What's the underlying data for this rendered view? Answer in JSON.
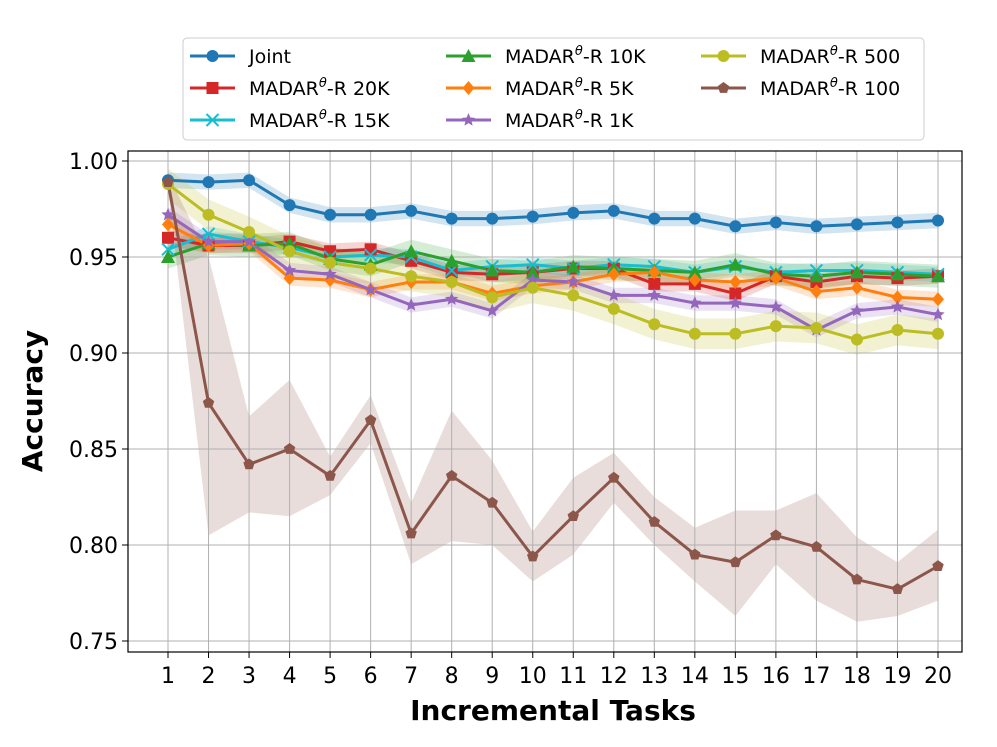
{
  "chart_data": {
    "type": "line",
    "title": "",
    "xlabel": "Incremental Tasks",
    "ylabel": "Accuracy",
    "x": [
      1,
      2,
      3,
      4,
      5,
      6,
      7,
      8,
      9,
      10,
      11,
      12,
      13,
      14,
      15,
      16,
      17,
      18,
      19,
      20
    ],
    "xticks": [
      "1",
      "2",
      "3",
      "4",
      "5",
      "6",
      "7",
      "8",
      "9",
      "10",
      "11",
      "12",
      "13",
      "14",
      "15",
      "16",
      "17",
      "18",
      "19",
      "20"
    ],
    "ylim": [
      0.75,
      1.0
    ],
    "yticks": [
      "0.75",
      "0.80",
      "0.85",
      "0.90",
      "0.95",
      "1.00"
    ],
    "grid": true,
    "legend_placement": "top-center",
    "series": [
      {
        "name": "Joint",
        "legend": [
          "Joint",
          ""
        ],
        "color": "#1f77b4",
        "marker": "circle",
        "values": [
          0.99,
          0.989,
          0.99,
          0.977,
          0.972,
          0.972,
          0.974,
          0.97,
          0.97,
          0.971,
          0.973,
          0.974,
          0.97,
          0.97,
          0.966,
          0.968,
          0.966,
          0.967,
          0.968,
          0.969
        ],
        "band": 0.004
      },
      {
        "name": "MADARθ-R 20K",
        "legend": [
          "MADAR",
          "-R 20K"
        ],
        "color": "#d62728",
        "marker": "square",
        "values": [
          0.96,
          0.956,
          0.956,
          0.958,
          0.953,
          0.954,
          0.948,
          0.942,
          0.941,
          0.942,
          0.944,
          0.944,
          0.936,
          0.936,
          0.931,
          0.94,
          0.937,
          0.94,
          0.939,
          0.94
        ],
        "band": 0.004
      },
      {
        "name": "MADARθ-R 15K",
        "legend": [
          "MADAR",
          "-R 15K"
        ],
        "color": "#17becf",
        "marker": "x",
        "values": [
          0.954,
          0.962,
          0.958,
          0.955,
          0.95,
          0.951,
          0.95,
          0.943,
          0.945,
          0.946,
          0.944,
          0.946,
          0.945,
          0.942,
          0.945,
          0.942,
          0.943,
          0.943,
          0.942,
          0.941
        ],
        "band": 0.004
      },
      {
        "name": "MADARθ-R 10K",
        "legend": [
          "MADAR",
          "-R 10K"
        ],
        "color": "#2ca02c",
        "marker": "triangle",
        "values": [
          0.95,
          0.957,
          0.956,
          0.957,
          0.949,
          0.946,
          0.953,
          0.948,
          0.943,
          0.942,
          0.945,
          0.944,
          0.943,
          0.942,
          0.946,
          0.941,
          0.94,
          0.942,
          0.941,
          0.94
        ],
        "band": 0.006
      },
      {
        "name": "MADARθ-R 5K",
        "legend": [
          "MADAR",
          "-R 5K"
        ],
        "color": "#ff7f0e",
        "marker": "diamond",
        "values": [
          0.967,
          0.956,
          0.957,
          0.939,
          0.938,
          0.933,
          0.937,
          0.937,
          0.931,
          0.935,
          0.937,
          0.941,
          0.942,
          0.938,
          0.937,
          0.939,
          0.932,
          0.934,
          0.929,
          0.928
        ],
        "band": 0.004
      },
      {
        "name": "MADARθ-R 1K",
        "legend": [
          "MADAR",
          "-R 1K"
        ],
        "color": "#9467bd",
        "marker": "star",
        "values": [
          0.972,
          0.958,
          0.958,
          0.943,
          0.941,
          0.933,
          0.925,
          0.928,
          0.922,
          0.938,
          0.937,
          0.93,
          0.93,
          0.926,
          0.926,
          0.924,
          0.912,
          0.922,
          0.924,
          0.92
        ],
        "band": 0.004
      },
      {
        "name": "MADARθ-R 500",
        "legend": [
          "MADAR",
          "-R 500"
        ],
        "color": "#bcbd22",
        "marker": "circle",
        "values": [
          0.988,
          0.972,
          0.963,
          0.953,
          0.947,
          0.944,
          0.94,
          0.937,
          0.929,
          0.934,
          0.93,
          0.923,
          0.915,
          0.91,
          0.91,
          0.914,
          0.913,
          0.907,
          0.912,
          0.91
        ],
        "band": 0.008
      },
      {
        "name": "MADARθ-R 100",
        "legend": [
          "MADAR",
          "-R 100"
        ],
        "color": "#8c564b",
        "marker": "pentagon",
        "values": [
          0.989,
          0.874,
          0.842,
          0.85,
          0.836,
          0.865,
          0.806,
          0.836,
          0.822,
          0.794,
          0.815,
          0.835,
          0.812,
          0.795,
          0.791,
          0.805,
          0.799,
          0.782,
          0.777,
          0.789
        ],
        "band_low": [
          0.985,
          0.805,
          0.817,
          0.815,
          0.826,
          0.853,
          0.79,
          0.802,
          0.8,
          0.781,
          0.795,
          0.822,
          0.8,
          0.781,
          0.763,
          0.79,
          0.771,
          0.76,
          0.763,
          0.771
        ],
        "band_high": [
          0.993,
          0.95,
          0.867,
          0.886,
          0.846,
          0.878,
          0.822,
          0.87,
          0.844,
          0.807,
          0.835,
          0.848,
          0.825,
          0.809,
          0.818,
          0.818,
          0.827,
          0.804,
          0.791,
          0.808
        ]
      }
    ]
  }
}
